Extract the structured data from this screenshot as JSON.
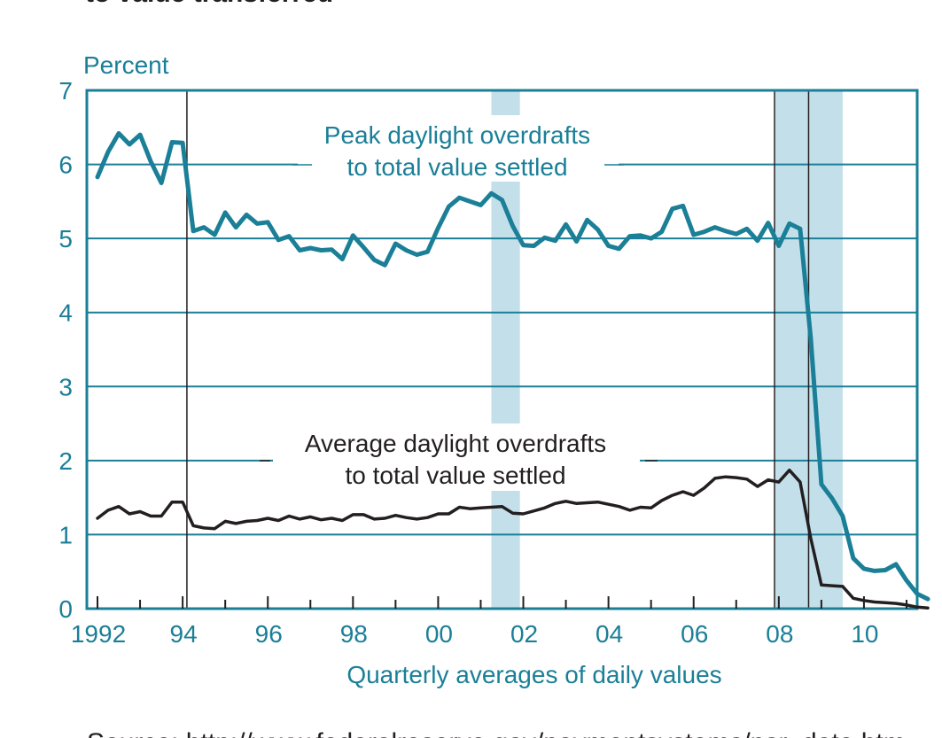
{
  "header": {
    "title_fragment": "to value transferred",
    "footer_fragment": "Source: http://www.federalreserve.gov/paymentsystems/psr_data.htm"
  },
  "colors": {
    "teal": "#1a7f97",
    "shade": "#c3dfea",
    "black": "#231f20"
  },
  "chart_data": {
    "type": "line",
    "ylabel": "Percent",
    "xlabel": "Quarterly averages of daily values",
    "xlim": [
      1991.75,
      2011.25
    ],
    "ylim": [
      0,
      7
    ],
    "y_ticks": [
      0,
      1,
      2,
      3,
      4,
      5,
      6,
      7
    ],
    "x_tick_labels": [
      {
        "label": "1992",
        "year": 1992
      },
      {
        "label": "94",
        "year": 1994
      },
      {
        "label": "96",
        "year": 1996
      },
      {
        "label": "98",
        "year": 1998
      },
      {
        "label": "00",
        "year": 2000
      },
      {
        "label": "02",
        "year": 2002
      },
      {
        "label": "04",
        "year": 2004
      },
      {
        "label": "06",
        "year": 2006
      },
      {
        "label": "08",
        "year": 2008
      },
      {
        "label": "10",
        "year": 2010
      }
    ],
    "grid": "horizontal",
    "shaded_periods": [
      [
        2001.25,
        2001.92
      ],
      [
        2007.92,
        2009.5
      ]
    ],
    "reference_lines": [
      1994.1,
      2007.9,
      2008.7
    ],
    "series": [
      {
        "name": "Peak daylight overdrafts to total value settled",
        "label_lines": [
          "Peak daylight overdrafts",
          "to total value settled"
        ],
        "color": "#1a7f97",
        "points": [
          [
            1992.0,
            5.83
          ],
          [
            1992.25,
            6.17
          ],
          [
            1992.5,
            6.42
          ],
          [
            1992.75,
            6.27
          ],
          [
            1993.0,
            6.4
          ],
          [
            1993.25,
            6.04
          ],
          [
            1993.5,
            5.75
          ],
          [
            1993.75,
            6.3
          ],
          [
            1994.0,
            6.29
          ],
          [
            1994.25,
            5.1
          ],
          [
            1994.5,
            5.15
          ],
          [
            1994.75,
            5.05
          ],
          [
            1995.0,
            5.35
          ],
          [
            1995.25,
            5.15
          ],
          [
            1995.5,
            5.32
          ],
          [
            1995.75,
            5.2
          ],
          [
            1996.0,
            5.22
          ],
          [
            1996.25,
            4.98
          ],
          [
            1996.5,
            5.03
          ],
          [
            1996.75,
            4.84
          ],
          [
            1997.0,
            4.87
          ],
          [
            1997.25,
            4.84
          ],
          [
            1997.5,
            4.85
          ],
          [
            1997.75,
            4.72
          ],
          [
            1998.0,
            5.04
          ],
          [
            1998.25,
            4.88
          ],
          [
            1998.5,
            4.71
          ],
          [
            1998.75,
            4.64
          ],
          [
            1999.0,
            4.93
          ],
          [
            1999.25,
            4.84
          ],
          [
            1999.5,
            4.78
          ],
          [
            1999.75,
            4.82
          ],
          [
            2000.0,
            5.14
          ],
          [
            2000.25,
            5.43
          ],
          [
            2000.5,
            5.55
          ],
          [
            2000.75,
            5.5
          ],
          [
            2001.0,
            5.45
          ],
          [
            2001.25,
            5.61
          ],
          [
            2001.5,
            5.52
          ],
          [
            2001.75,
            5.17
          ],
          [
            2002.0,
            4.91
          ],
          [
            2002.25,
            4.9
          ],
          [
            2002.5,
            5.01
          ],
          [
            2002.75,
            4.97
          ],
          [
            2003.0,
            5.19
          ],
          [
            2003.25,
            4.96
          ],
          [
            2003.5,
            5.25
          ],
          [
            2003.75,
            5.12
          ],
          [
            2004.0,
            4.9
          ],
          [
            2004.25,
            4.86
          ],
          [
            2004.5,
            5.03
          ],
          [
            2004.75,
            5.04
          ],
          [
            2005.0,
            5.0
          ],
          [
            2005.25,
            5.09
          ],
          [
            2005.5,
            5.4
          ],
          [
            2005.75,
            5.44
          ],
          [
            2006.0,
            5.05
          ],
          [
            2006.25,
            5.09
          ],
          [
            2006.5,
            5.15
          ],
          [
            2006.75,
            5.1
          ],
          [
            2007.0,
            5.06
          ],
          [
            2007.25,
            5.13
          ],
          [
            2007.5,
            4.97
          ],
          [
            2007.75,
            5.21
          ],
          [
            2008.0,
            4.9
          ],
          [
            2008.25,
            5.2
          ],
          [
            2008.5,
            5.13
          ],
          [
            2008.75,
            3.65
          ],
          [
            2009.0,
            1.68
          ],
          [
            2009.25,
            1.49
          ],
          [
            2009.5,
            1.25
          ],
          [
            2009.75,
            0.68
          ],
          [
            2010.0,
            0.54
          ],
          [
            2010.25,
            0.51
          ],
          [
            2010.5,
            0.52
          ],
          [
            2010.75,
            0.6
          ],
          [
            2011.0,
            0.38
          ],
          [
            2011.25,
            0.2
          ],
          [
            2011.5,
            0.13
          ]
        ]
      },
      {
        "name": "Average daylight overdrafts to total value settled",
        "label_lines": [
          "Average daylight overdrafts",
          "to total value settled"
        ],
        "color": "#231f20",
        "points": [
          [
            1992.0,
            1.22
          ],
          [
            1992.25,
            1.33
          ],
          [
            1992.5,
            1.38
          ],
          [
            1992.75,
            1.28
          ],
          [
            1993.0,
            1.31
          ],
          [
            1993.25,
            1.25
          ],
          [
            1993.5,
            1.25
          ],
          [
            1993.75,
            1.44
          ],
          [
            1994.0,
            1.44
          ],
          [
            1994.25,
            1.12
          ],
          [
            1994.5,
            1.09
          ],
          [
            1994.75,
            1.08
          ],
          [
            1995.0,
            1.18
          ],
          [
            1995.25,
            1.15
          ],
          [
            1995.5,
            1.18
          ],
          [
            1995.75,
            1.19
          ],
          [
            1996.0,
            1.22
          ],
          [
            1996.25,
            1.19
          ],
          [
            1996.5,
            1.25
          ],
          [
            1996.75,
            1.21
          ],
          [
            1997.0,
            1.24
          ],
          [
            1997.25,
            1.2
          ],
          [
            1997.5,
            1.22
          ],
          [
            1997.75,
            1.19
          ],
          [
            1998.0,
            1.27
          ],
          [
            1998.25,
            1.27
          ],
          [
            1998.5,
            1.21
          ],
          [
            1998.75,
            1.22
          ],
          [
            1999.0,
            1.26
          ],
          [
            1999.25,
            1.23
          ],
          [
            1999.5,
            1.21
          ],
          [
            1999.75,
            1.23
          ],
          [
            2000.0,
            1.28
          ],
          [
            2000.25,
            1.28
          ],
          [
            2000.5,
            1.37
          ],
          [
            2000.75,
            1.35
          ],
          [
            2001.0,
            1.36
          ],
          [
            2001.25,
            1.37
          ],
          [
            2001.5,
            1.38
          ],
          [
            2001.75,
            1.29
          ],
          [
            2002.0,
            1.28
          ],
          [
            2002.25,
            1.32
          ],
          [
            2002.5,
            1.36
          ],
          [
            2002.75,
            1.42
          ],
          [
            2003.0,
            1.45
          ],
          [
            2003.25,
            1.42
          ],
          [
            2003.5,
            1.43
          ],
          [
            2003.75,
            1.44
          ],
          [
            2004.0,
            1.41
          ],
          [
            2004.25,
            1.38
          ],
          [
            2004.5,
            1.33
          ],
          [
            2004.75,
            1.37
          ],
          [
            2005.0,
            1.36
          ],
          [
            2005.25,
            1.46
          ],
          [
            2005.5,
            1.53
          ],
          [
            2005.75,
            1.58
          ],
          [
            2006.0,
            1.53
          ],
          [
            2006.25,
            1.63
          ],
          [
            2006.5,
            1.76
          ],
          [
            2006.75,
            1.78
          ],
          [
            2007.0,
            1.77
          ],
          [
            2007.25,
            1.75
          ],
          [
            2007.5,
            1.65
          ],
          [
            2007.75,
            1.74
          ],
          [
            2008.0,
            1.71
          ],
          [
            2008.25,
            1.87
          ],
          [
            2008.5,
            1.71
          ],
          [
            2008.75,
            0.95
          ],
          [
            2009.0,
            0.32
          ],
          [
            2009.25,
            0.31
          ],
          [
            2009.5,
            0.3
          ],
          [
            2009.75,
            0.14
          ],
          [
            2010.0,
            0.11
          ],
          [
            2010.25,
            0.09
          ],
          [
            2010.5,
            0.08
          ],
          [
            2010.75,
            0.07
          ],
          [
            2011.0,
            0.05
          ],
          [
            2011.25,
            0.02
          ],
          [
            2011.5,
            0.01
          ]
        ]
      }
    ]
  }
}
